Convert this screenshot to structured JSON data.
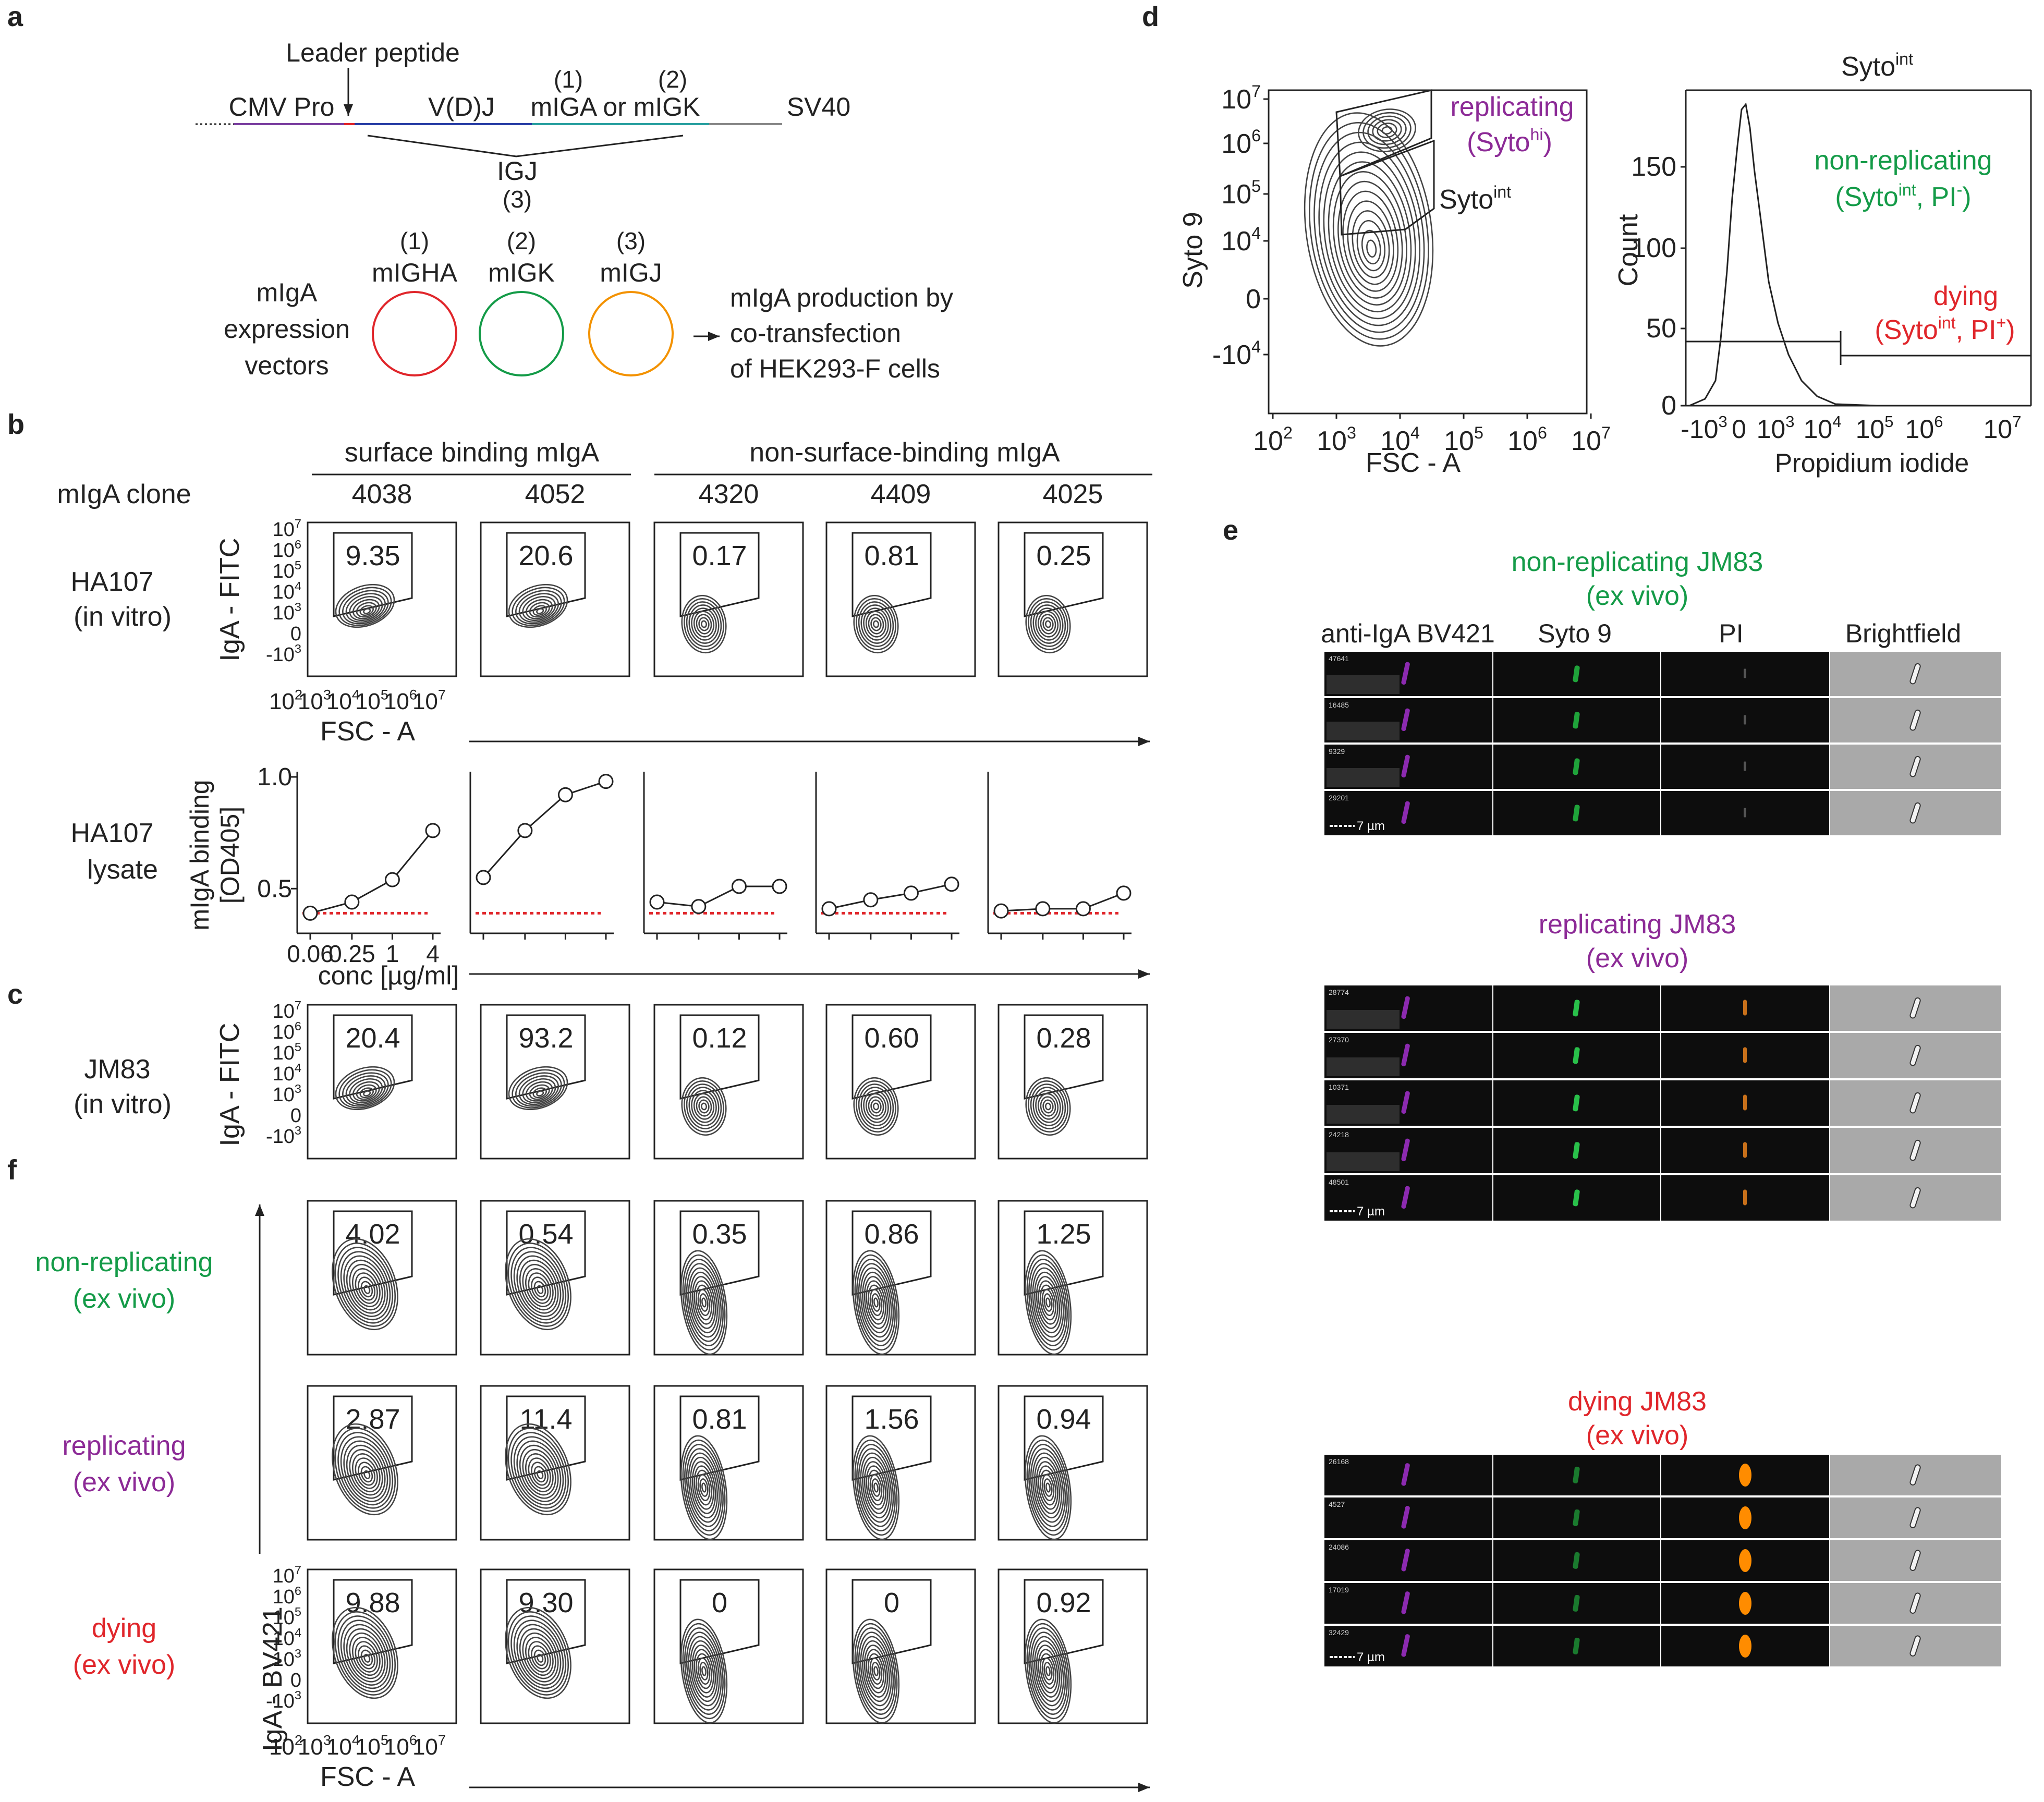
{
  "panels": {
    "a": "a",
    "b": "b",
    "c": "c",
    "d": "d",
    "e": "e",
    "f": "f"
  },
  "colors": {
    "red": "#e0262b",
    "green": "#149b48",
    "orange": "#f39200",
    "purple": "#8c2a96",
    "contour": "#444444"
  },
  "panel_a": {
    "leader_peptide": "Leader peptide",
    "cmv_pro": "CMV Pro",
    "vdj": "V(D)J",
    "n1": "(1)",
    "mIGA_or_mIGK": "mIGA or mIGK",
    "n2": "(2)",
    "sv40": "SV40",
    "igj": "IGJ",
    "n3": "(3)",
    "vector_label": [
      "mIgA",
      "expression",
      "vectors"
    ],
    "vectors": [
      {
        "num": "(1)",
        "name": "mIGHA"
      },
      {
        "num": "(2)",
        "name": "mIGK"
      },
      {
        "num": "(3)",
        "name": "mIGJ"
      }
    ],
    "production": [
      "mIgA production by",
      "co-transfection",
      "of HEK293-F cells"
    ]
  },
  "panel_b": {
    "group_surface": "surface binding mIgA",
    "group_nonsurface": "non-surface-binding mIgA",
    "clone_label": "mIgA clone",
    "clones": [
      "4038",
      "4052",
      "4320",
      "4409",
      "4025"
    ],
    "row_invitro": [
      "HA107",
      "(in vitro)"
    ],
    "row_lysate": [
      "HA107",
      "lysate"
    ],
    "ylabel_facs": "IgA - FITC",
    "xlabel_facs": "FSC - A",
    "gates_ha107": [
      "9.35",
      "20.6",
      "0.17",
      "0.81",
      "0.25"
    ],
    "y_ticks": [
      "10^7",
      "10^6",
      "10^5",
      "10^4",
      "10^3",
      "0",
      "-10^3"
    ],
    "x_ticks": [
      "10^2",
      "10^3",
      "10^4",
      "10^5",
      "10^6",
      "10^7"
    ],
    "elisa_ylabel": [
      "mIgA binding",
      "[OD405]"
    ],
    "elisa_yticks": [
      "1.0",
      "0.5"
    ],
    "elisa_xticks": [
      "0.06",
      "0.25",
      "1",
      "4"
    ],
    "elisa_xlabel": "conc [µg/ml]"
  },
  "chart_data": {
    "type": "line",
    "x": [
      0.06,
      0.25,
      1,
      4
    ],
    "xscale": "log",
    "ylim": [
      0.3,
      1.0
    ],
    "ylabel": "mIgA binding [OD405]",
    "xlabel": "conc [µg/ml]",
    "background_od": 0.39,
    "series": [
      {
        "name": "4038",
        "values": [
          0.39,
          0.44,
          0.54,
          0.76
        ]
      },
      {
        "name": "4052",
        "values": [
          0.55,
          0.76,
          0.92,
          0.98
        ]
      },
      {
        "name": "4320",
        "values": [
          0.44,
          0.42,
          0.51,
          0.51
        ]
      },
      {
        "name": "4409",
        "values": [
          0.41,
          0.45,
          0.48,
          0.52
        ]
      },
      {
        "name": "4025",
        "values": [
          0.4,
          0.41,
          0.41,
          0.48
        ]
      }
    ]
  },
  "panel_c": {
    "row": [
      "JM83",
      "(in vitro)"
    ],
    "ylabel": "IgA - FITC",
    "gates": [
      "20.4",
      "93.2",
      "0.12",
      "0.60",
      "0.28"
    ]
  },
  "panel_d": {
    "ylabel": "Syto 9",
    "xlabel": "FSC - A",
    "replicating": "replicating",
    "syto": "Syto",
    "hi": "hi",
    "int": "int",
    "hist_title_base": "Syto",
    "hist_ylabel": "Count",
    "hist_yticks": [
      "150",
      "100",
      "50",
      "0"
    ],
    "hist_xlabel": "Propidium iodide",
    "hist_xticks": [
      "-10^3",
      "0",
      "10^3",
      "10^4",
      "10^5",
      "10^6",
      "10^7"
    ],
    "nonrep": "non-replicating",
    "pi": "PI",
    "minus": "-",
    "plus": "+",
    "dying": "dying"
  },
  "panel_e": {
    "headers": [
      "anti-IgA BV421",
      "Syto 9",
      "PI",
      "Brightfield"
    ],
    "groups": [
      {
        "title": [
          "non-replicating JM83",
          "(ex vivo)"
        ],
        "ids": [
          "47641",
          "16485",
          "9329",
          "29201"
        ]
      },
      {
        "title": [
          "replicating JM83",
          "(ex vivo)"
        ],
        "ids": [
          "28774",
          "27370",
          "10371",
          "24218",
          "48501"
        ]
      },
      {
        "title": [
          "dying JM83",
          "(ex vivo)"
        ],
        "ids": [
          "26168",
          "4527",
          "24086",
          "17019",
          "32429"
        ]
      }
    ],
    "scale": "7 µm"
  },
  "panel_f": {
    "rows": [
      {
        "label": [
          "non-replicating",
          "(ex vivo)"
        ],
        "gates": [
          "4.02",
          "0.54",
          "0.35",
          "0.86",
          "1.25"
        ]
      },
      {
        "label": [
          "replicating",
          "(ex vivo)"
        ],
        "gates": [
          "2.87",
          "11.4",
          "0.81",
          "1.56",
          "0.94"
        ]
      },
      {
        "label": [
          "dying",
          "(ex vivo)"
        ],
        "gates": [
          "9.88",
          "9.30",
          "0",
          "0",
          "0.92"
        ]
      }
    ],
    "ylabel": "IgA - BV421",
    "xlabel": "FSC - A"
  }
}
